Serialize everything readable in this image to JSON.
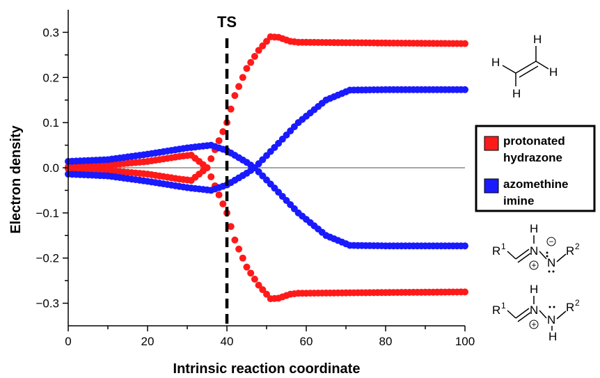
{
  "chart_data": {
    "type": "scatter",
    "xlabel": "Intrinsic reaction coordinate",
    "ylabel": "Electron density",
    "xlim": [
      0,
      100
    ],
    "ylim": [
      -0.35,
      0.35
    ],
    "xticks": [
      "0",
      "20",
      "40",
      "60",
      "80",
      "100"
    ],
    "yticks": [
      "0.3",
      "0.2",
      "0.1",
      "0.0",
      "−0.1",
      "−0.2",
      "−0.3"
    ],
    "zero_line": true,
    "annotation": {
      "label": "TS",
      "x": 40,
      "style": "dashed vertical line"
    },
    "legend": {
      "placement": "right",
      "entries": [
        {
          "line1": "protonated",
          "line2": "hydrazone",
          "color": "#ff1a1a"
        },
        {
          "line1": "azomethine",
          "line2": "imine",
          "color": "#1a1aff"
        }
      ]
    },
    "series": [
      {
        "name": "protonated hydrazone",
        "color": "#ff1a1a",
        "x": [
          0,
          10,
          20,
          28,
          31,
          35,
          38,
          40,
          42,
          45,
          48,
          51,
          53,
          56,
          58,
          70,
          85,
          100
        ],
        "upper": [
          0.002,
          0.006,
          0.014,
          0.025,
          0.028,
          0.0,
          0.06,
          0.1,
          0.16,
          0.22,
          0.26,
          0.29,
          0.289,
          0.28,
          0.278,
          0.277,
          0.276,
          0.275
        ]
      },
      {
        "name": "azomethine imine",
        "color": "#1a1aff",
        "x": [
          0,
          10,
          20,
          30,
          36,
          40,
          45,
          47,
          52,
          58,
          65,
          71,
          80,
          90,
          100
        ],
        "upper": [
          0.014,
          0.018,
          0.03,
          0.044,
          0.05,
          0.038,
          0.012,
          0.0,
          -0.045,
          -0.1,
          -0.15,
          -0.172,
          -0.173,
          -0.173,
          -0.173
        ]
      }
    ]
  },
  "structures": {
    "ethylene": {
      "atoms": [
        "H",
        "H",
        "H",
        "H"
      ]
    },
    "azomethine_imine": {
      "h": "H",
      "r1": "R",
      "r1_sup": "1",
      "n1": "N",
      "n2": "N",
      "r2": "R",
      "r2_sup": "2",
      "plus": "+",
      "minus": "−"
    },
    "protonated_hydrazone": {
      "h1": "H",
      "r1": "R",
      "r1_sup": "1",
      "n1": "N",
      "n2": "N",
      "h2": "H",
      "r2": "R",
      "r2_sup": "2",
      "plus": "+"
    }
  },
  "colors": {
    "zero_line": "#888888",
    "ts_line": "#000000",
    "axis": "#000000"
  }
}
